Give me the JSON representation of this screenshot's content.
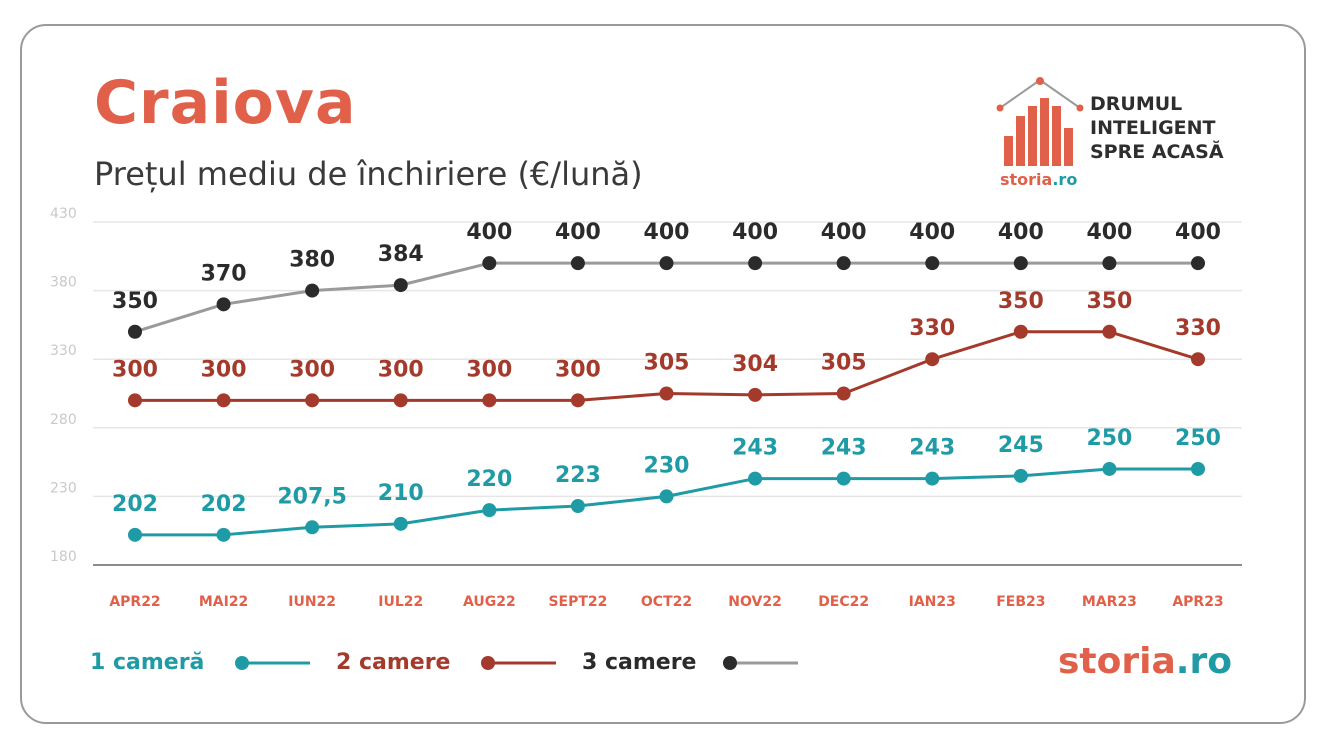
{
  "header": {
    "title": "Craiova",
    "subtitle": "Prețul mediu de închiriere (€/lună)"
  },
  "brand": {
    "tagline": "DRUMUL\nINTELIGENT\nSPRE ACASĂ",
    "logo_main": "storia",
    "logo_suffix": ".ro"
  },
  "colors": {
    "title": "#e0604a",
    "one_room": "#1f9ba6",
    "two_rooms": "#a43a2c",
    "three_rooms_line": "#9a9a9a",
    "three_rooms_dot": "#2b2b2b",
    "axis_labels": "#e0604a",
    "grid": "#e6e6e6",
    "ytick": "#c9c9c9"
  },
  "legend": [
    {
      "label": "1 cameră",
      "series": "1 cameră"
    },
    {
      "label": "2 camere",
      "series": "2 camere"
    },
    {
      "label": "3 camere",
      "series": "3 camere"
    }
  ],
  "chart_data": {
    "type": "line",
    "title": "Prețul mediu de închiriere (€/lună)",
    "xlabel": "",
    "ylabel": "",
    "ylim": [
      180,
      430
    ],
    "yticks": [
      180,
      230,
      280,
      330,
      380,
      430
    ],
    "grid": true,
    "legend_position": "bottom-left",
    "categories": [
      "APR22",
      "MAI22",
      "IUN22",
      "IUL22",
      "AUG22",
      "SEPT22",
      "OCT22",
      "NOV22",
      "DEC22",
      "IAN23",
      "FEB23",
      "MAR23",
      "APR23"
    ],
    "series": [
      {
        "name": "1 cameră",
        "values": [
          202,
          202,
          207.5,
          210,
          220,
          223,
          230,
          243,
          243,
          243,
          245,
          250,
          250
        ],
        "labels": [
          "202",
          "202",
          "207,5",
          "210",
          "220",
          "223",
          "230",
          "243",
          "243",
          "243",
          "245",
          "250",
          "250"
        ]
      },
      {
        "name": "2 camere",
        "values": [
          300,
          300,
          300,
          300,
          300,
          300,
          305,
          304,
          305,
          330,
          350,
          350,
          330
        ],
        "labels": [
          "300",
          "300",
          "300",
          "300",
          "300",
          "300",
          "305",
          "304",
          "305",
          "330",
          "350",
          "350",
          "330"
        ]
      },
      {
        "name": "3 camere",
        "values": [
          350,
          370,
          380,
          384,
          400,
          400,
          400,
          400,
          400,
          400,
          400,
          400,
          400
        ],
        "labels": [
          "350",
          "370",
          "380",
          "384",
          "400",
          "400",
          "400",
          "400",
          "400",
          "400",
          "400",
          "400",
          "400"
        ]
      }
    ]
  }
}
